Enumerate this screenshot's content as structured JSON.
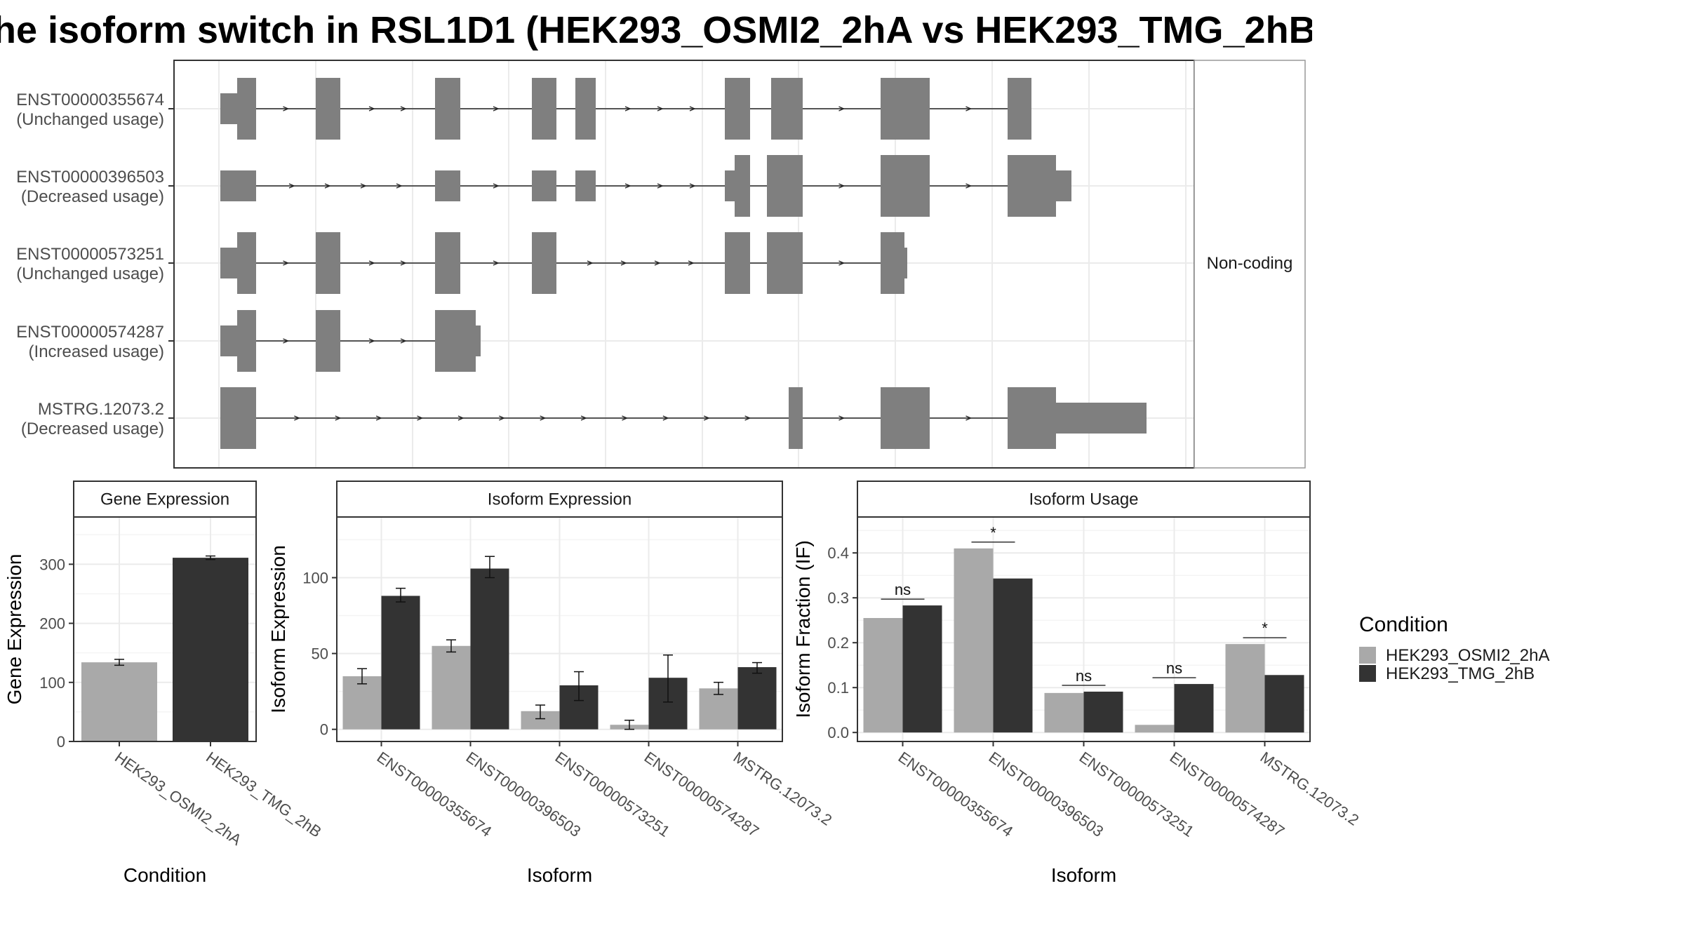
{
  "title": "he isoform switch in RSL1D1 (HEK293_OSMI2_2hA vs HEK293_TMG_2hB",
  "colors": {
    "light": "#a9a9a9",
    "dark": "#333333",
    "exon": "#7f7f7f",
    "grid": "#ebebeb",
    "border": "#333333"
  },
  "transcripts": {
    "strip_label": "Non-coding",
    "items": [
      {
        "id": "ENST00000355674",
        "usage": "(Unchanged usage)"
      },
      {
        "id": "ENST00000396503",
        "usage": "(Decreased usage)"
      },
      {
        "id": "ENST00000573251",
        "usage": "(Unchanged usage)"
      },
      {
        "id": "ENST00000574287",
        "usage": "(Increased usage)"
      },
      {
        "id": "MSTRG.12073.2",
        "usage": "(Decreased usage)"
      }
    ]
  },
  "legend": {
    "title": "Condition",
    "items": [
      {
        "label": "HEK293_OSMI2_2hA",
        "color": "#a9a9a9"
      },
      {
        "label": "HEK293_TMG_2hB",
        "color": "#333333"
      }
    ]
  },
  "chart_data": [
    {
      "type": "bar",
      "panel_title": "Gene Expression",
      "xlabel": "Condition",
      "ylabel": "Gene Expression",
      "categories": [
        "HEK293_OSMI2_2hA",
        "HEK293_TMG_2hB"
      ],
      "values": [
        134,
        311
      ],
      "errors": [
        [
          129,
          139
        ],
        [
          308,
          314
        ]
      ],
      "yticks": [
        0,
        100,
        200,
        300
      ],
      "ylim": [
        0,
        380
      ]
    },
    {
      "type": "bar",
      "panel_title": "Isoform Expression",
      "xlabel": "Isoform",
      "ylabel": "Isoform Expression",
      "categories": [
        "ENST00000355674",
        "ENST00000396503",
        "ENST00000573251",
        "ENST00000574287",
        "MSTRG.12073.2"
      ],
      "series": [
        {
          "name": "HEK293_OSMI2_2hA",
          "values": [
            35,
            55,
            12,
            3,
            27
          ],
          "errors": [
            [
              30,
              40
            ],
            [
              51,
              59
            ],
            [
              7,
              16
            ],
            [
              0,
              6
            ],
            [
              23,
              31
            ]
          ]
        },
        {
          "name": "HEK293_TMG_2hB",
          "values": [
            88,
            106,
            29,
            34,
            41
          ],
          "errors": [
            [
              84,
              93
            ],
            [
              100,
              114
            ],
            [
              19,
              38
            ],
            [
              18,
              49
            ],
            [
              37,
              44
            ]
          ]
        }
      ],
      "yticks": [
        0,
        50,
        100
      ],
      "ylim": [
        -8,
        140
      ]
    },
    {
      "type": "bar",
      "panel_title": "Isoform Usage",
      "xlabel": "Isoform",
      "ylabel": "Isoform Fraction (IF)",
      "categories": [
        "ENST00000355674",
        "ENST00000396503",
        "ENST00000573251",
        "ENST00000574287",
        "MSTRG.12073.2"
      ],
      "series": [
        {
          "name": "HEK293_OSMI2_2hA",
          "values": [
            0.255,
            0.41,
            0.088,
            0.017,
            0.197
          ]
        },
        {
          "name": "HEK293_TMG_2hB",
          "values": [
            0.283,
            0.343,
            0.091,
            0.108,
            0.128
          ]
        }
      ],
      "significance": [
        "ns",
        "*",
        "ns",
        "ns",
        "*"
      ],
      "yticks": [
        0.0,
        0.1,
        0.2,
        0.3,
        0.4
      ],
      "ylim": [
        -0.02,
        0.48
      ]
    }
  ]
}
